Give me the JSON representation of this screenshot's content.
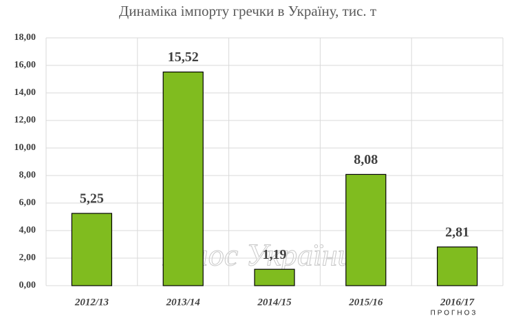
{
  "chart_data": {
    "type": "bar",
    "title": "Динаміка імпорту гречки в Україну, тис. т",
    "categories": [
      "2012/13",
      "2013/14",
      "2014/15",
      "2015/16",
      "2016/17"
    ],
    "values": [
      5.25,
      15.52,
      1.19,
      8.08,
      2.81
    ],
    "value_labels": [
      "5,25",
      "15,52",
      "1,19",
      "8,08",
      "2,81"
    ],
    "color": "#80bc1f",
    "ylim": [
      0,
      18
    ],
    "yticks": [
      {
        "value": 0,
        "label": "0,00"
      },
      {
        "value": 2,
        "label": "2,00"
      },
      {
        "value": 4,
        "label": "4,00"
      },
      {
        "value": 6,
        "label": "6,00"
      },
      {
        "value": 8,
        "label": "8,00"
      },
      {
        "value": 10,
        "label": "10,00"
      },
      {
        "value": 12,
        "label": "12,00"
      },
      {
        "value": 14,
        "label": "14,00"
      },
      {
        "value": 16,
        "label": "16,00"
      },
      {
        "value": 18,
        "label": "18,00"
      }
    ],
    "grid": true,
    "annotation": "ПРОГНОЗ",
    "watermark": "Голос України"
  }
}
